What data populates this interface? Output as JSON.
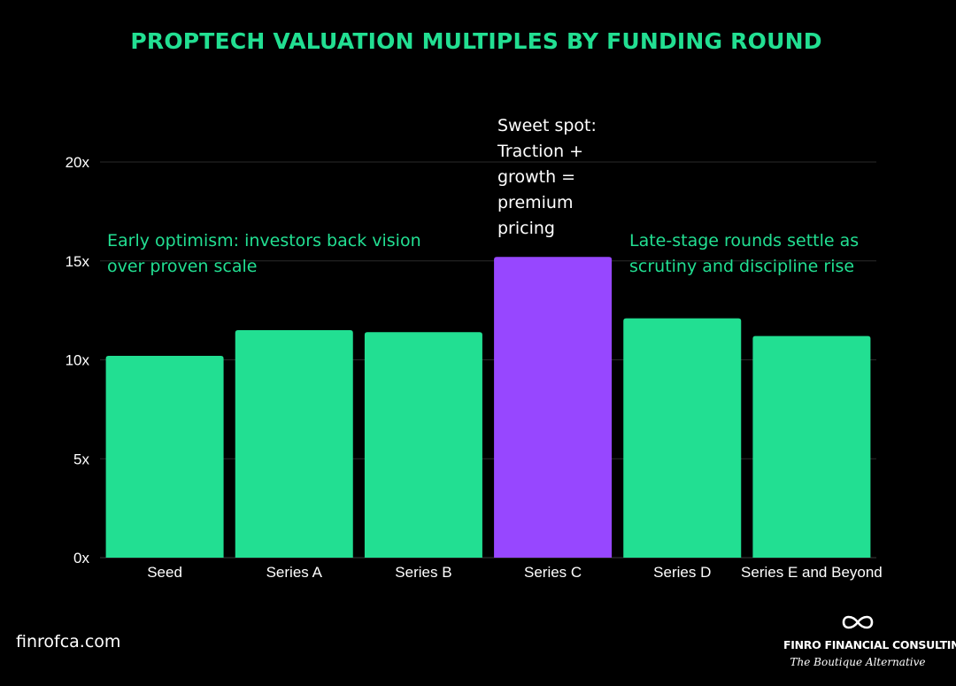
{
  "colors": {
    "background": "#000000",
    "accent": "#22df92",
    "highlight": "#9747ff",
    "text": "#ffffff",
    "grid": "#2a2a2a"
  },
  "chart_data": {
    "type": "bar",
    "title": "PROPTECH VALUATION MULTIPLES BY FUNDING ROUND",
    "xlabel": "",
    "ylabel": "",
    "categories": [
      "Seed",
      "Series A",
      "Series B",
      "Series C",
      "Series D",
      "Series E and Beyond"
    ],
    "values": [
      10.2,
      11.5,
      11.4,
      15.2,
      12.1,
      11.2
    ],
    "highlighted_category": "Series C",
    "ylim": [
      0,
      20
    ],
    "yticks": [
      0,
      5,
      10,
      15,
      20
    ],
    "ytick_labels": [
      "0x",
      "5x",
      "10x",
      "15x",
      "20x"
    ],
    "grid": true,
    "annotations": [
      {
        "lines": [
          "Early optimism: investors back vision",
          "over proven scale"
        ],
        "color": "accent"
      },
      {
        "lines": [
          "Sweet spot:",
          "Traction +",
          "growth =",
          "premium",
          "pricing"
        ],
        "color": "text"
      },
      {
        "lines": [
          "Late-stage rounds settle as",
          "scrutiny and discipline rise"
        ],
        "color": "accent"
      }
    ]
  },
  "footer": {
    "website": "finrofca.com",
    "brand_name": "FINRO FINANCIAL CONSULTING",
    "brand_tagline": "The Boutique Alternative",
    "logo_icon": "infinity-icon"
  }
}
